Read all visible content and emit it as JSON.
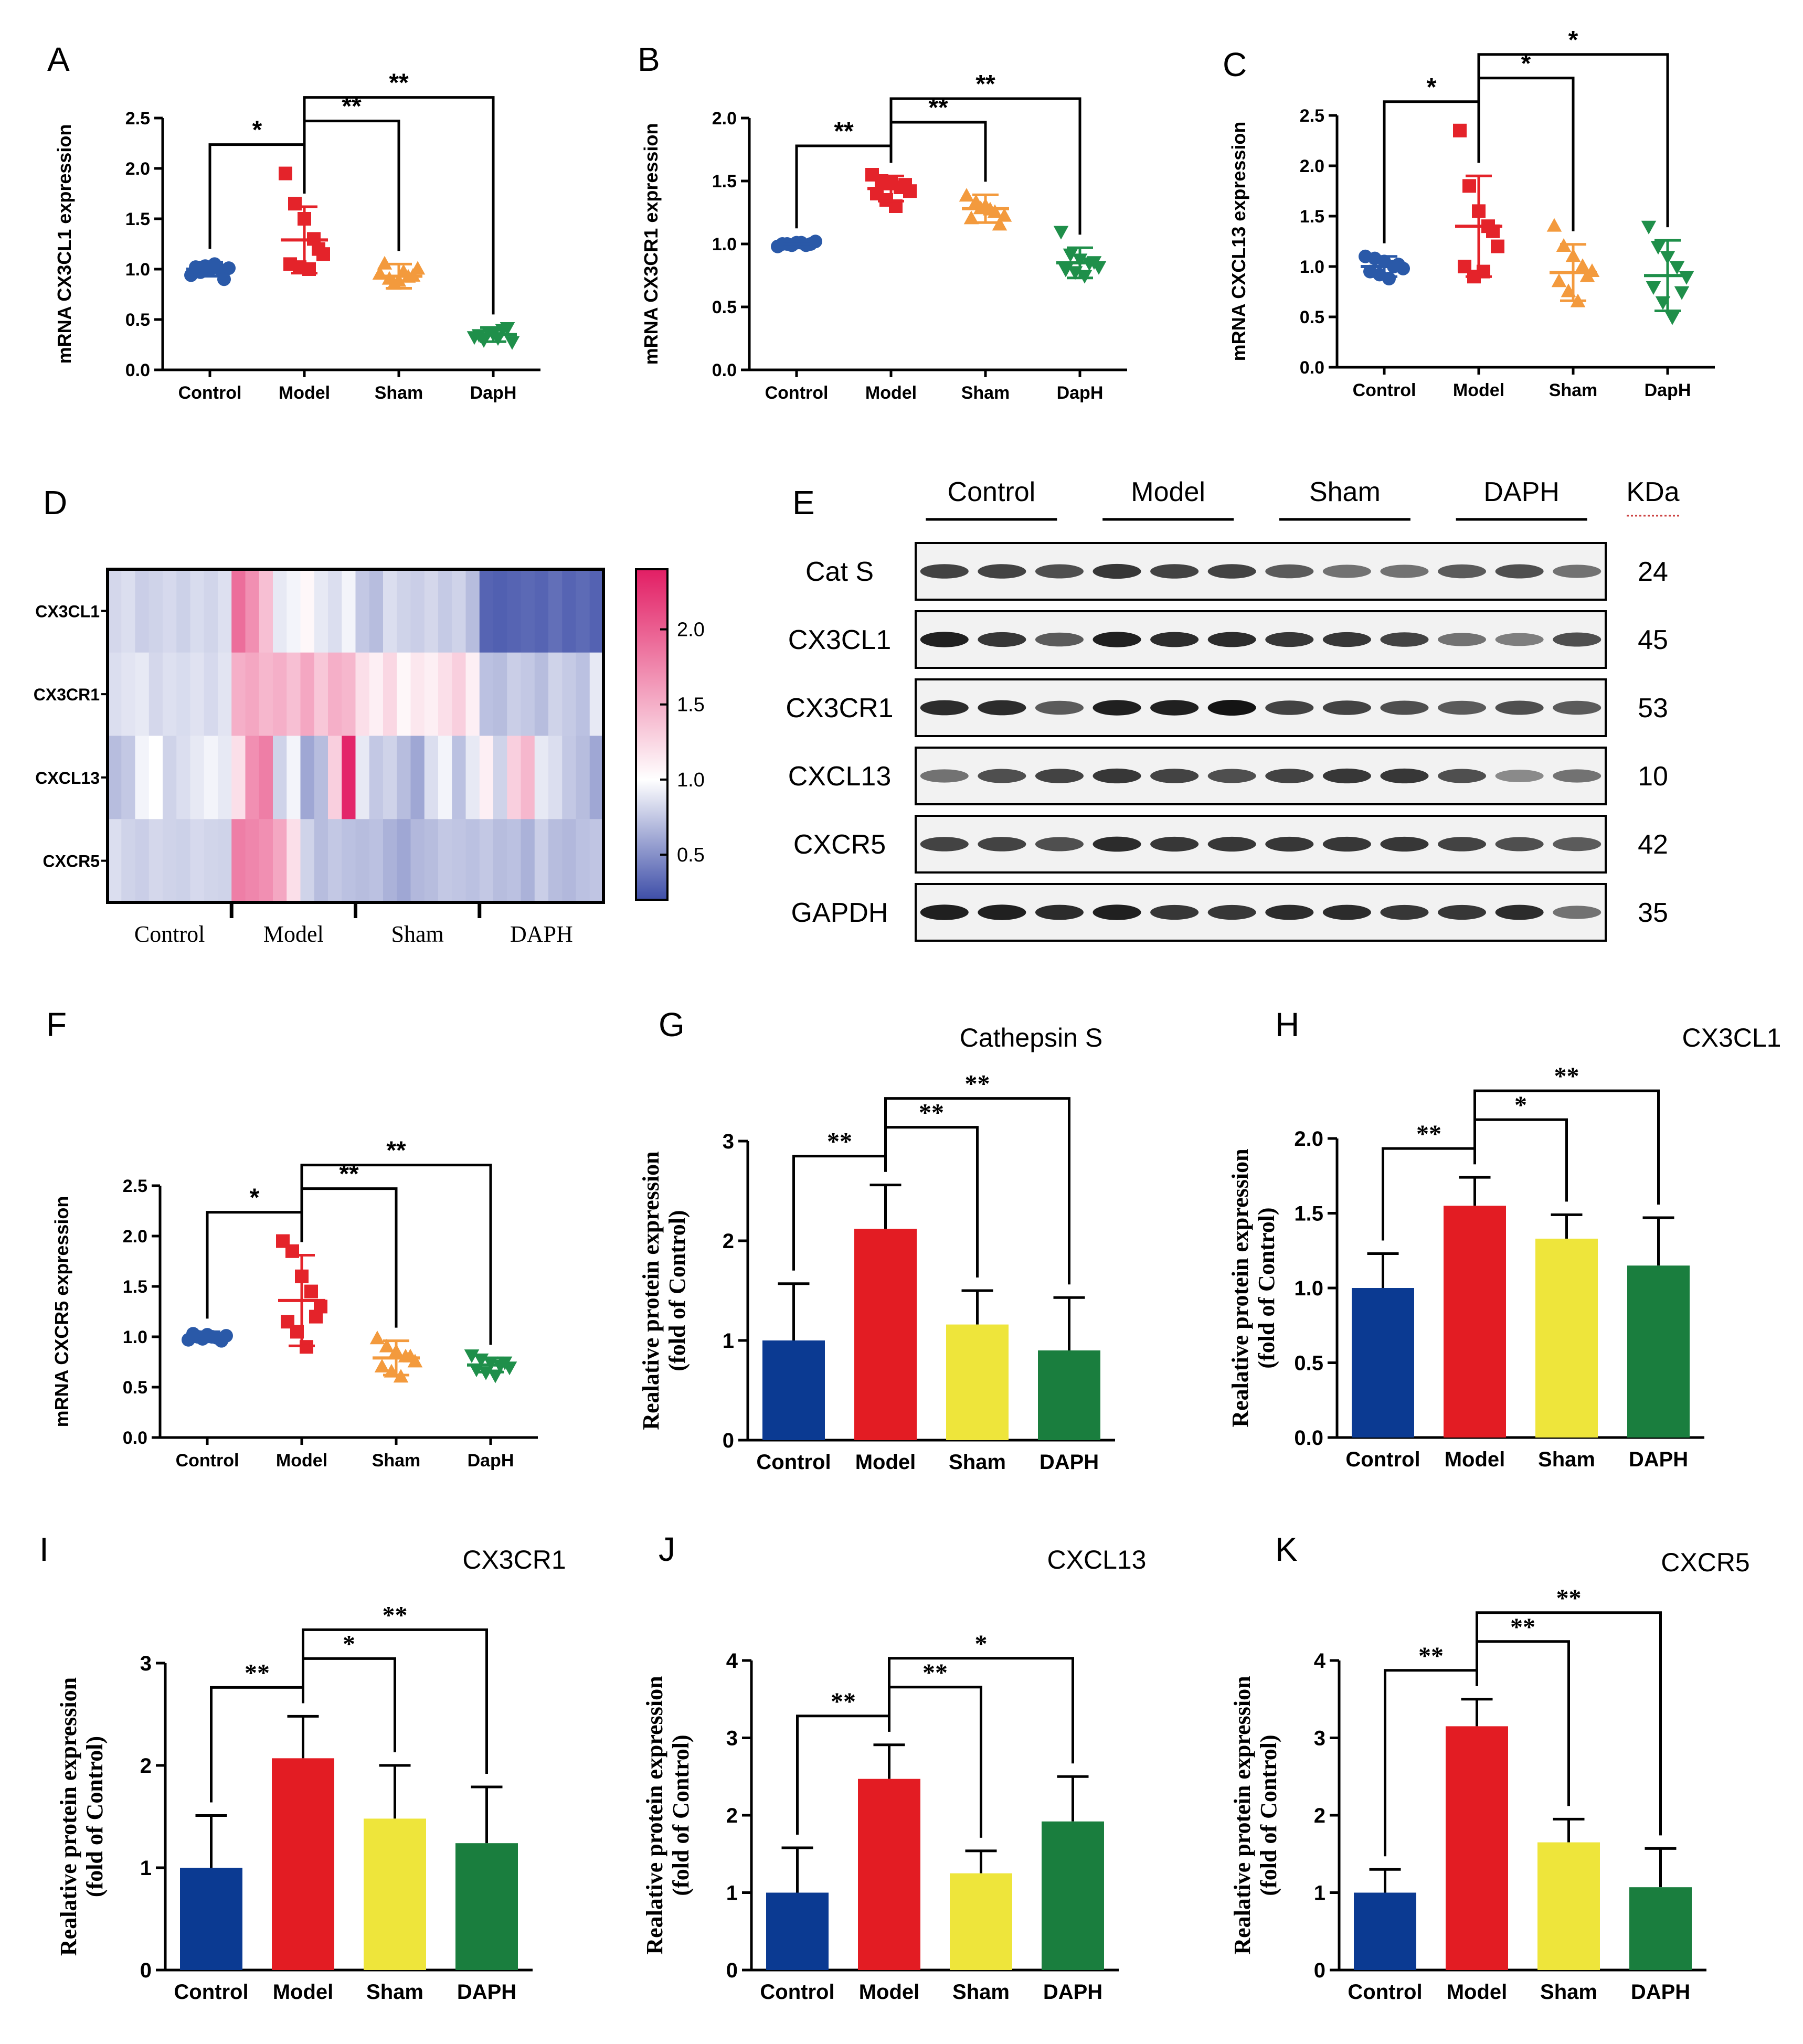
{
  "chart_data": [
    {
      "id": "A",
      "panel_label": "A",
      "type": "scatter",
      "title": "",
      "ylabel": "mRNA CX3CL1 expression",
      "ylim": [
        0,
        2.5
      ],
      "yticks": [
        "0.0",
        "0.5",
        "1.0",
        "1.5",
        "2.0",
        "2.5"
      ],
      "categories": [
        "Control",
        "Model",
        "Sham",
        "DapH"
      ],
      "colors": [
        "#2a59a8",
        "#e4232a",
        "#f39a3d",
        "#1f8f4a"
      ],
      "markers": [
        "circle",
        "square",
        "triangle",
        "triangle-down"
      ],
      "means": [
        1.0,
        1.29,
        0.93,
        0.35
      ],
      "sd": [
        0.07,
        0.33,
        0.12,
        0.07
      ],
      "points": [
        [
          0.94,
          0.97,
          0.99,
          1.0,
          1.01,
          1.02,
          1.03,
          1.05,
          0.9
        ],
        [
          1.95,
          1.65,
          1.5,
          1.3,
          1.15,
          1.05,
          1.02,
          1.0,
          1.2
        ],
        [
          0.95,
          0.9,
          0.88,
          0.92,
          1.0,
          1.05,
          0.85,
          0.97,
          0.93
        ],
        [
          0.33,
          0.3,
          0.36,
          0.4,
          0.28,
          0.35,
          0.38,
          0.32,
          0.42
        ]
      ],
      "significance": [
        {
          "from": 0,
          "to": 1,
          "label": "*"
        },
        {
          "from": 1,
          "to": 2,
          "label": "**"
        },
        {
          "from": 1,
          "to": 3,
          "label": "**"
        }
      ]
    },
    {
      "id": "B",
      "panel_label": "B",
      "type": "scatter",
      "title": "",
      "ylabel": "mRNA CX3CR1 expression",
      "ylim": [
        0,
        2.0
      ],
      "yticks": [
        "0.0",
        "0.5",
        "1.0",
        "1.5",
        "2.0"
      ],
      "categories": [
        "Control",
        "Model",
        "Sham",
        "DapH"
      ],
      "colors": [
        "#2a59a8",
        "#e4232a",
        "#f39a3d",
        "#1f8f4a"
      ],
      "markers": [
        "circle",
        "square",
        "triangle",
        "triangle-down"
      ],
      "means": [
        1.0,
        1.44,
        1.28,
        0.85
      ],
      "sd": [
        0.02,
        0.1,
        0.11,
        0.12
      ],
      "points": [
        [
          0.98,
          1.0,
          1.01,
          0.99,
          1.02,
          1.0,
          0.99,
          1.01,
          1.0
        ],
        [
          1.55,
          1.5,
          1.48,
          1.45,
          1.42,
          1.4,
          1.35,
          1.3,
          1.47
        ],
        [
          1.38,
          1.33,
          1.3,
          1.25,
          1.22,
          1.2,
          1.28,
          1.27,
          1.15
        ],
        [
          1.1,
          0.92,
          0.88,
          0.85,
          0.82,
          0.8,
          0.78,
          0.75,
          0.86
        ]
      ],
      "significance": [
        {
          "from": 0,
          "to": 1,
          "label": "**"
        },
        {
          "from": 1,
          "to": 2,
          "label": "**"
        },
        {
          "from": 1,
          "to": 3,
          "label": "**"
        }
      ]
    },
    {
      "id": "C",
      "panel_label": "C",
      "type": "scatter",
      "title": "",
      "ylabel": "mRNA CXCL13 expression",
      "ylim": [
        0,
        2.5
      ],
      "yticks": [
        "0.0",
        "0.5",
        "1.0",
        "1.5",
        "2.0",
        "2.5"
      ],
      "categories": [
        "Control",
        "Model",
        "Sham",
        "DapH"
      ],
      "colors": [
        "#2a59a8",
        "#e4232a",
        "#f39a3d",
        "#1f8f4a"
      ],
      "markers": [
        "circle",
        "square",
        "triangle",
        "triangle-down"
      ],
      "means": [
        1.0,
        1.4,
        0.94,
        0.91
      ],
      "sd": [
        0.1,
        0.5,
        0.28,
        0.35
      ],
      "points": [
        [
          1.1,
          1.08,
          1.05,
          1.0,
          0.98,
          0.95,
          0.92,
          0.88,
          1.02
        ],
        [
          2.35,
          1.8,
          1.55,
          1.4,
          1.2,
          1.0,
          0.9,
          0.95,
          1.35
        ],
        [
          1.4,
          1.2,
          1.1,
          1.0,
          0.95,
          0.85,
          0.75,
          0.65,
          0.9
        ],
        [
          1.4,
          1.2,
          1.1,
          1.0,
          0.9,
          0.8,
          0.65,
          0.5,
          0.75
        ]
      ],
      "significance": [
        {
          "from": 0,
          "to": 1,
          "label": "*"
        },
        {
          "from": 1,
          "to": 2,
          "label": "*"
        },
        {
          "from": 1,
          "to": 3,
          "label": "*"
        }
      ]
    },
    {
      "id": "D",
      "panel_label": "D",
      "type": "heatmap",
      "rows": [
        "CX3CL1",
        "CX3CR1",
        "CXCL13",
        "CXCR5"
      ],
      "group_labels": [
        "Control",
        "Model",
        "Sham",
        "DAPH"
      ],
      "colorbar_ticks": [
        "0.5",
        "1.0",
        "1.5",
        "2.0"
      ],
      "colorbar_range": [
        0.2,
        2.4
      ],
      "values": [
        [
          0.82,
          0.85,
          0.78,
          0.8,
          0.83,
          0.79,
          0.84,
          0.81,
          0.86,
          1.9,
          1.7,
          1.4,
          0.9,
          0.95,
          1.05,
          0.9,
          0.85,
          0.95,
          0.75,
          0.7,
          0.85,
          0.8,
          0.78,
          0.82,
          0.76,
          0.8,
          0.7,
          0.3,
          0.28,
          0.3,
          0.32,
          0.3,
          0.35,
          0.3,
          0.33,
          0.29
        ],
        [
          0.85,
          0.88,
          0.9,
          0.82,
          0.86,
          0.84,
          0.87,
          0.83,
          0.88,
          1.5,
          1.55,
          1.45,
          1.5,
          1.4,
          1.55,
          1.35,
          1.5,
          1.45,
          1.2,
          1.1,
          1.25,
          1.05,
          1.15,
          1.1,
          1.2,
          1.3,
          1.1,
          0.72,
          0.7,
          0.78,
          0.75,
          0.7,
          0.8,
          0.76,
          0.72,
          0.9
        ],
        [
          0.7,
          0.75,
          0.95,
          1.0,
          0.8,
          0.85,
          0.9,
          0.95,
          0.9,
          1.2,
          1.7,
          1.8,
          0.8,
          0.95,
          0.6,
          0.7,
          1.3,
          2.35,
          0.9,
          0.75,
          0.8,
          0.7,
          0.6,
          0.85,
          0.95,
          0.72,
          0.9,
          1.1,
          0.8,
          1.3,
          1.45,
          0.9,
          0.85,
          0.75,
          0.7,
          0.6
        ],
        [
          0.85,
          0.8,
          0.78,
          0.82,
          0.8,
          0.79,
          0.83,
          0.81,
          0.8,
          1.8,
          1.75,
          1.7,
          1.55,
          1.2,
          0.8,
          0.7,
          0.75,
          0.72,
          0.7,
          0.72,
          0.65,
          0.6,
          0.68,
          0.7,
          0.75,
          0.74,
          0.72,
          0.75,
          0.7,
          0.72,
          0.65,
          0.78,
          0.7,
          0.68,
          0.72,
          0.74
        ]
      ]
    },
    {
      "id": "E",
      "panel_label": "E",
      "type": "table",
      "header_groups": [
        "Control",
        "Model",
        "Sham",
        "DAPH"
      ],
      "kda_header": "KDa",
      "bands": [
        {
          "name": "Cat S",
          "kda": "24",
          "intensity": [
            0.8,
            0.8,
            0.75,
            0.85,
            0.8,
            0.8,
            0.7,
            0.6,
            0.6,
            0.7,
            0.75,
            0.6
          ]
        },
        {
          "name": "CX3CL1",
          "kda": "45",
          "intensity": [
            0.95,
            0.85,
            0.7,
            0.95,
            0.9,
            0.9,
            0.85,
            0.85,
            0.8,
            0.6,
            0.55,
            0.75
          ]
        },
        {
          "name": "CX3CR1",
          "kda": "53",
          "intensity": [
            0.9,
            0.9,
            0.7,
            0.95,
            0.95,
            1.0,
            0.8,
            0.8,
            0.75,
            0.7,
            0.75,
            0.7
          ]
        },
        {
          "name": "CXCL13",
          "kda": "10",
          "intensity": [
            0.6,
            0.75,
            0.8,
            0.85,
            0.8,
            0.75,
            0.8,
            0.85,
            0.85,
            0.75,
            0.5,
            0.6
          ]
        },
        {
          "name": "CXCR5",
          "kda": "42",
          "intensity": [
            0.8,
            0.8,
            0.75,
            0.9,
            0.85,
            0.85,
            0.85,
            0.85,
            0.85,
            0.8,
            0.75,
            0.7
          ]
        },
        {
          "name": "GAPDH",
          "kda": "35",
          "intensity": [
            0.95,
            0.95,
            0.9,
            0.95,
            0.85,
            0.85,
            0.9,
            0.9,
            0.85,
            0.85,
            0.9,
            0.6
          ]
        }
      ]
    },
    {
      "id": "F",
      "panel_label": "F",
      "type": "scatter",
      "title": "",
      "ylabel": "mRNA CXCR5 expression",
      "ylim": [
        0,
        2.5
      ],
      "yticks": [
        "0.0",
        "0.5",
        "1.0",
        "1.5",
        "2.0",
        "2.5"
      ],
      "categories": [
        "Control",
        "Model",
        "Sham",
        "DapH"
      ],
      "colors": [
        "#2a59a8",
        "#e4232a",
        "#f39a3d",
        "#1f8f4a"
      ],
      "markers": [
        "circle",
        "square",
        "triangle",
        "triangle-down"
      ],
      "means": [
        1.0,
        1.36,
        0.79,
        0.72
      ],
      "sd": [
        0.05,
        0.45,
        0.17,
        0.07
      ],
      "points": [
        [
          0.97,
          1.0,
          1.02,
          0.99,
          1.01,
          1.03,
          0.98,
          1.0,
          0.96
        ],
        [
          1.95,
          1.85,
          1.6,
          1.45,
          1.3,
          1.15,
          1.05,
          0.9,
          1.2
        ],
        [
          0.98,
          0.9,
          0.85,
          0.8,
          0.75,
          0.7,
          0.65,
          0.6,
          0.8
        ],
        [
          0.82,
          0.78,
          0.75,
          0.72,
          0.7,
          0.68,
          0.65,
          0.62,
          0.75
        ]
      ],
      "significance": [
        {
          "from": 0,
          "to": 1,
          "label": "*"
        },
        {
          "from": 1,
          "to": 2,
          "label": "**"
        },
        {
          "from": 1,
          "to": 3,
          "label": "**"
        }
      ]
    },
    {
      "id": "G",
      "panel_label": "G",
      "type": "bar",
      "title": "Cathepsin S",
      "ylabel": "Realative protein expression",
      "ylabel2": "(fold of Control)",
      "ylim": [
        0,
        3
      ],
      "yticks": [
        "0",
        "1",
        "2",
        "3"
      ],
      "categories": [
        "Control",
        "Model",
        "Sham",
        "DAPH"
      ],
      "colors": [
        "#0b3a92",
        "#e31c23",
        "#eee53b",
        "#1a7e3e"
      ],
      "values": [
        1.0,
        2.12,
        1.16,
        0.9
      ],
      "errors": [
        0.57,
        0.44,
        0.34,
        0.53
      ],
      "significance": [
        {
          "from": 0,
          "to": 1,
          "label": "**"
        },
        {
          "from": 1,
          "to": 2,
          "label": "**"
        },
        {
          "from": 1,
          "to": 3,
          "label": "**"
        }
      ]
    },
    {
      "id": "H",
      "panel_label": "H",
      "type": "bar",
      "title": "CX3CL1",
      "ylabel": "Realative protein expression",
      "ylabel2": "(fold of Control)",
      "ylim": [
        0,
        2.0
      ],
      "yticks": [
        "0.0",
        "0.5",
        "1.0",
        "1.5",
        "2.0"
      ],
      "categories": [
        "Control",
        "Model",
        "Sham",
        "DAPH"
      ],
      "colors": [
        "#0b3a92",
        "#e31c23",
        "#eee53b",
        "#1a7e3e"
      ],
      "values": [
        1.0,
        1.55,
        1.33,
        1.15
      ],
      "errors": [
        0.23,
        0.19,
        0.16,
        0.32
      ],
      "significance": [
        {
          "from": 0,
          "to": 1,
          "label": "**"
        },
        {
          "from": 1,
          "to": 2,
          "label": "*"
        },
        {
          "from": 1,
          "to": 3,
          "label": "**"
        }
      ]
    },
    {
      "id": "I",
      "panel_label": "I",
      "type": "bar",
      "title": "CX3CR1",
      "ylabel": "Realative protein expression",
      "ylabel2": "(fold of Control)",
      "ylim": [
        0,
        3
      ],
      "yticks": [
        "0",
        "1",
        "2",
        "3"
      ],
      "categories": [
        "Control",
        "Model",
        "Sham",
        "DAPH"
      ],
      "colors": [
        "#0b3a92",
        "#e31c23",
        "#eee53b",
        "#1a7e3e"
      ],
      "values": [
        1.0,
        2.07,
        1.48,
        1.24
      ],
      "errors": [
        0.51,
        0.41,
        0.52,
        0.55
      ],
      "significance": [
        {
          "from": 0,
          "to": 1,
          "label": "**"
        },
        {
          "from": 1,
          "to": 2,
          "label": "*"
        },
        {
          "from": 1,
          "to": 3,
          "label": "**"
        }
      ]
    },
    {
      "id": "J",
      "panel_label": "J",
      "type": "bar",
      "title": "CXCL13",
      "ylabel": "Realative protein expression",
      "ylabel2": "(fold of Control)",
      "ylim": [
        0,
        4
      ],
      "yticks": [
        "0",
        "1",
        "2",
        "3",
        "4"
      ],
      "categories": [
        "Control",
        "Model",
        "Sham",
        "DAPH"
      ],
      "colors": [
        "#0b3a92",
        "#e31c23",
        "#eee53b",
        "#1a7e3e"
      ],
      "values": [
        1.0,
        2.47,
        1.25,
        1.92
      ],
      "errors": [
        0.58,
        0.44,
        0.29,
        0.58
      ],
      "significance": [
        {
          "from": 0,
          "to": 1,
          "label": "**"
        },
        {
          "from": 1,
          "to": 2,
          "label": "**"
        },
        {
          "from": 1,
          "to": 3,
          "label": "*"
        }
      ]
    },
    {
      "id": "K",
      "panel_label": "K",
      "type": "bar",
      "title": "CXCR5",
      "ylabel": "Realative protein expression",
      "ylabel2": "(fold of Control)",
      "ylim": [
        0,
        4
      ],
      "yticks": [
        "0",
        "1",
        "2",
        "3",
        "4"
      ],
      "categories": [
        "Control",
        "Model",
        "Sham",
        "DAPH"
      ],
      "colors": [
        "#0b3a92",
        "#e31c23",
        "#eee53b",
        "#1a7e3e"
      ],
      "values": [
        1.0,
        3.15,
        1.65,
        1.07
      ],
      "errors": [
        0.3,
        0.35,
        0.3,
        0.5
      ],
      "significance": [
        {
          "from": 0,
          "to": 1,
          "label": "**"
        },
        {
          "from": 1,
          "to": 2,
          "label": "**"
        },
        {
          "from": 1,
          "to": 3,
          "label": "**"
        }
      ]
    }
  ]
}
